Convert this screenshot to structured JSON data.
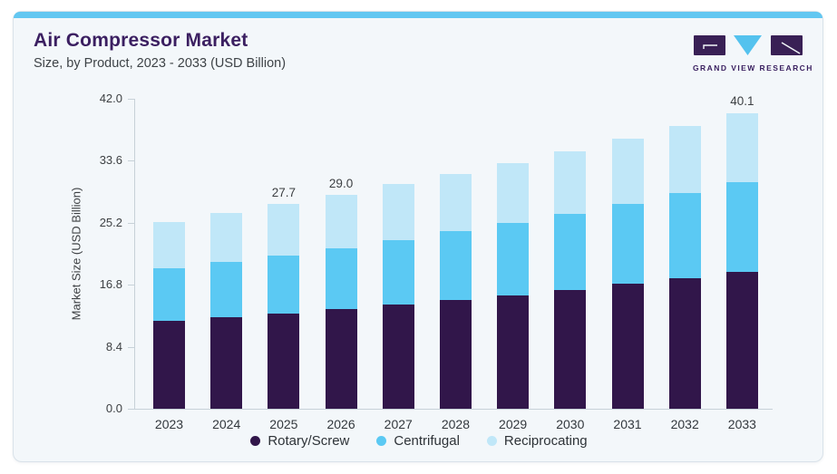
{
  "header": {
    "title": "Air Compressor Market",
    "subtitle": "Size, by Product, 2023 - 2033 (USD Billion)",
    "logo_text": "GRAND VIEW RESEARCH"
  },
  "chart_data": {
    "type": "bar",
    "stacked": true,
    "title": "Air Compressor Market Size, by Product, 2023 - 2033 (USD Billion)",
    "categories": [
      "2023",
      "2024",
      "2025",
      "2026",
      "2027",
      "2028",
      "2029",
      "2030",
      "2031",
      "2032",
      "2033"
    ],
    "series": [
      {
        "name": "Rotary/Screw",
        "color": "#31164a",
        "values": [
          11.9,
          12.4,
          12.9,
          13.5,
          14.1,
          14.8,
          15.4,
          16.1,
          16.9,
          17.7,
          18.5
        ]
      },
      {
        "name": "Centrifugal",
        "color": "#5bc9f3",
        "values": [
          7.1,
          7.5,
          7.9,
          8.3,
          8.8,
          9.3,
          9.8,
          10.3,
          10.9,
          11.5,
          12.2
        ]
      },
      {
        "name": "Reciprocating",
        "color": "#c0e7f8",
        "values": [
          6.3,
          6.6,
          6.9,
          7.2,
          7.5,
          7.7,
          8.1,
          8.5,
          8.8,
          9.1,
          9.4
        ]
      }
    ],
    "totals": [
      25.3,
      26.5,
      27.7,
      29.0,
      30.4,
      31.8,
      33.3,
      34.9,
      36.6,
      38.3,
      40.1
    ],
    "data_labels": [
      {
        "category": "2025",
        "text": "27.7"
      },
      {
        "category": "2026",
        "text": "29.0"
      },
      {
        "category": "2033",
        "text": "40.1"
      }
    ],
    "ylabel": "Market Size (USD Billion)",
    "ytick_labels": [
      "0.0",
      "8.4",
      "16.8",
      "25.2",
      "33.6",
      "42.0"
    ],
    "ylim": [
      0,
      42.0
    ],
    "grid": false,
    "legend_position": "bottom"
  },
  "colors": {
    "accent_bar": "#63c7f1",
    "card_background": "#f3f7fa",
    "card_border": "#d9e2e9",
    "axis": "#c7d1d8",
    "title_text": "#3b1f61",
    "body_text": "#3e4347"
  }
}
